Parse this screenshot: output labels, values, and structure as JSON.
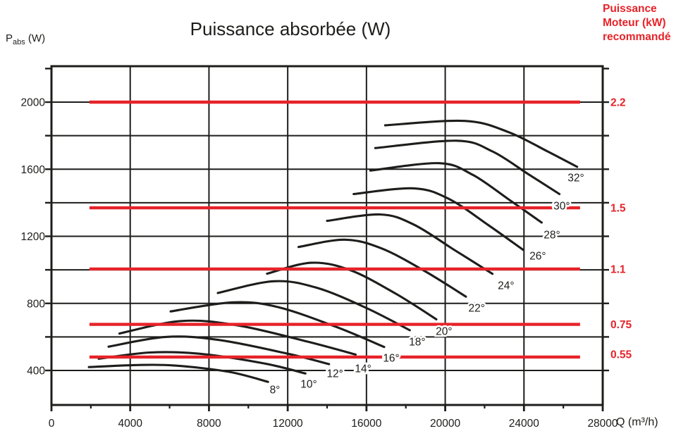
{
  "title": "Puissance absorbée (W)",
  "y_axis_label": {
    "symbol": "P",
    "subscript": "abs",
    "unit": " (W)"
  },
  "x_axis_label": "Q (m³/h)",
  "right_header": {
    "line1": "Puissance",
    "line2": "Moteur (kW)",
    "line3": "recommandé"
  },
  "colors": {
    "red": "#e62329",
    "black": "#1d1d1b"
  },
  "chart_data": {
    "type": "line",
    "title": "Puissance absorbée (W)",
    "xlabel": "Q (m³/h)",
    "ylabel": "Pabs (W)",
    "xlim": [
      0,
      28000
    ],
    "ylim": [
      190,
      2210
    ],
    "grid": "on",
    "x_ticks": [
      0,
      4000,
      8000,
      12000,
      16000,
      20000,
      24000,
      28000
    ],
    "x_minor_ticks": [
      2000,
      6000,
      10000,
      14000,
      18000,
      22000,
      26000
    ],
    "y_tick_labels": [
      400,
      800,
      1200,
      1600,
      2000
    ],
    "y_grid_lines": [
      400,
      600,
      800,
      1000,
      1200,
      1400,
      1600,
      1800,
      2000
    ],
    "y_edge_ticks": [
      400,
      600,
      800,
      1000,
      1200,
      1400,
      1600,
      1800,
      2000,
      2200
    ],
    "series": [
      {
        "name": "8°",
        "points": [
          [
            1900,
            420
          ],
          [
            4200,
            432
          ],
          [
            6200,
            430
          ],
          [
            9000,
            392
          ],
          [
            11000,
            332
          ]
        ],
        "label_at": [
          11350,
          287
        ]
      },
      {
        "name": "10°",
        "points": [
          [
            2400,
            470
          ],
          [
            5000,
            507
          ],
          [
            7500,
            500
          ],
          [
            10800,
            442
          ],
          [
            12900,
            382
          ]
        ],
        "label_at": [
          13070,
          320
        ]
      },
      {
        "name": "12°",
        "points": [
          [
            2900,
            542
          ],
          [
            5800,
            600
          ],
          [
            8500,
            582
          ],
          [
            12000,
            500
          ],
          [
            14100,
            438
          ]
        ],
        "label_at": [
          14400,
          383
        ]
      },
      {
        "name": "14°",
        "points": [
          [
            3450,
            620
          ],
          [
            6600,
            695
          ],
          [
            9500,
            668
          ],
          [
            13000,
            572
          ],
          [
            15450,
            495
          ]
        ],
        "label_at": [
          15830,
          413
        ]
      },
      {
        "name": "16°",
        "points": [
          [
            6050,
            752
          ],
          [
            9200,
            806
          ],
          [
            11500,
            778
          ],
          [
            14500,
            658
          ],
          [
            16900,
            540
          ]
        ],
        "label_at": [
          17260,
          476
        ]
      },
      {
        "name": "18°",
        "points": [
          [
            8450,
            862
          ],
          [
            11300,
            932
          ],
          [
            13500,
            892
          ],
          [
            16000,
            772
          ],
          [
            18200,
            640
          ]
        ],
        "label_at": [
          18580,
          572
        ]
      },
      {
        "name": "20°",
        "points": [
          [
            10950,
            977
          ],
          [
            13200,
            1042
          ],
          [
            15200,
            997
          ],
          [
            17500,
            857
          ],
          [
            19550,
            705
          ]
        ],
        "label_at": [
          19940,
          635
        ]
      },
      {
        "name": "22°",
        "points": [
          [
            12550,
            1136
          ],
          [
            14900,
            1180
          ],
          [
            16800,
            1126
          ],
          [
            19000,
            990
          ],
          [
            21050,
            840
          ]
        ],
        "label_at": [
          21600,
          774
        ]
      },
      {
        "name": "24°",
        "points": [
          [
            14000,
            1292
          ],
          [
            16700,
            1330
          ],
          [
            18400,
            1270
          ],
          [
            20500,
            1116
          ],
          [
            22400,
            976
          ]
        ],
        "label_at": [
          23090,
          908
        ]
      },
      {
        "name": "26°",
        "points": [
          [
            15350,
            1452
          ],
          [
            18400,
            1486
          ],
          [
            20200,
            1422
          ],
          [
            22200,
            1266
          ],
          [
            23950,
            1120
          ]
        ],
        "label_at": [
          24700,
          1084
        ]
      },
      {
        "name": "28°",
        "points": [
          [
            16200,
            1592
          ],
          [
            19700,
            1636
          ],
          [
            21400,
            1566
          ],
          [
            23200,
            1422
          ],
          [
            24900,
            1282
          ]
        ],
        "label_at": [
          25420,
          1210
        ]
      },
      {
        "name": "30°",
        "points": [
          [
            16450,
            1726
          ],
          [
            20600,
            1770
          ],
          [
            22400,
            1706
          ],
          [
            24200,
            1572
          ],
          [
            25800,
            1452
          ]
        ],
        "label_at": [
          25920,
          1383
        ]
      },
      {
        "name": "32°",
        "points": [
          [
            16950,
            1862
          ],
          [
            21000,
            1888
          ],
          [
            23200,
            1822
          ],
          [
            25200,
            1706
          ],
          [
            26700,
            1614
          ]
        ],
        "label_at": [
          26640,
          1551
        ]
      }
    ],
    "motor_power_lines": [
      {
        "label": "2.2",
        "p_w": 2000,
        "label_dy": 0
      },
      {
        "label": "1.5",
        "p_w": 1370,
        "label_dy": 0
      },
      {
        "label": "1.1",
        "p_w": 1005,
        "label_dy": 0
      },
      {
        "label": "0.75",
        "p_w": 675,
        "label_dy": 0
      },
      {
        "label": "0.55",
        "p_w": 480,
        "label_dy": -4
      }
    ],
    "line_span_q": [
      1930,
      26850
    ]
  }
}
